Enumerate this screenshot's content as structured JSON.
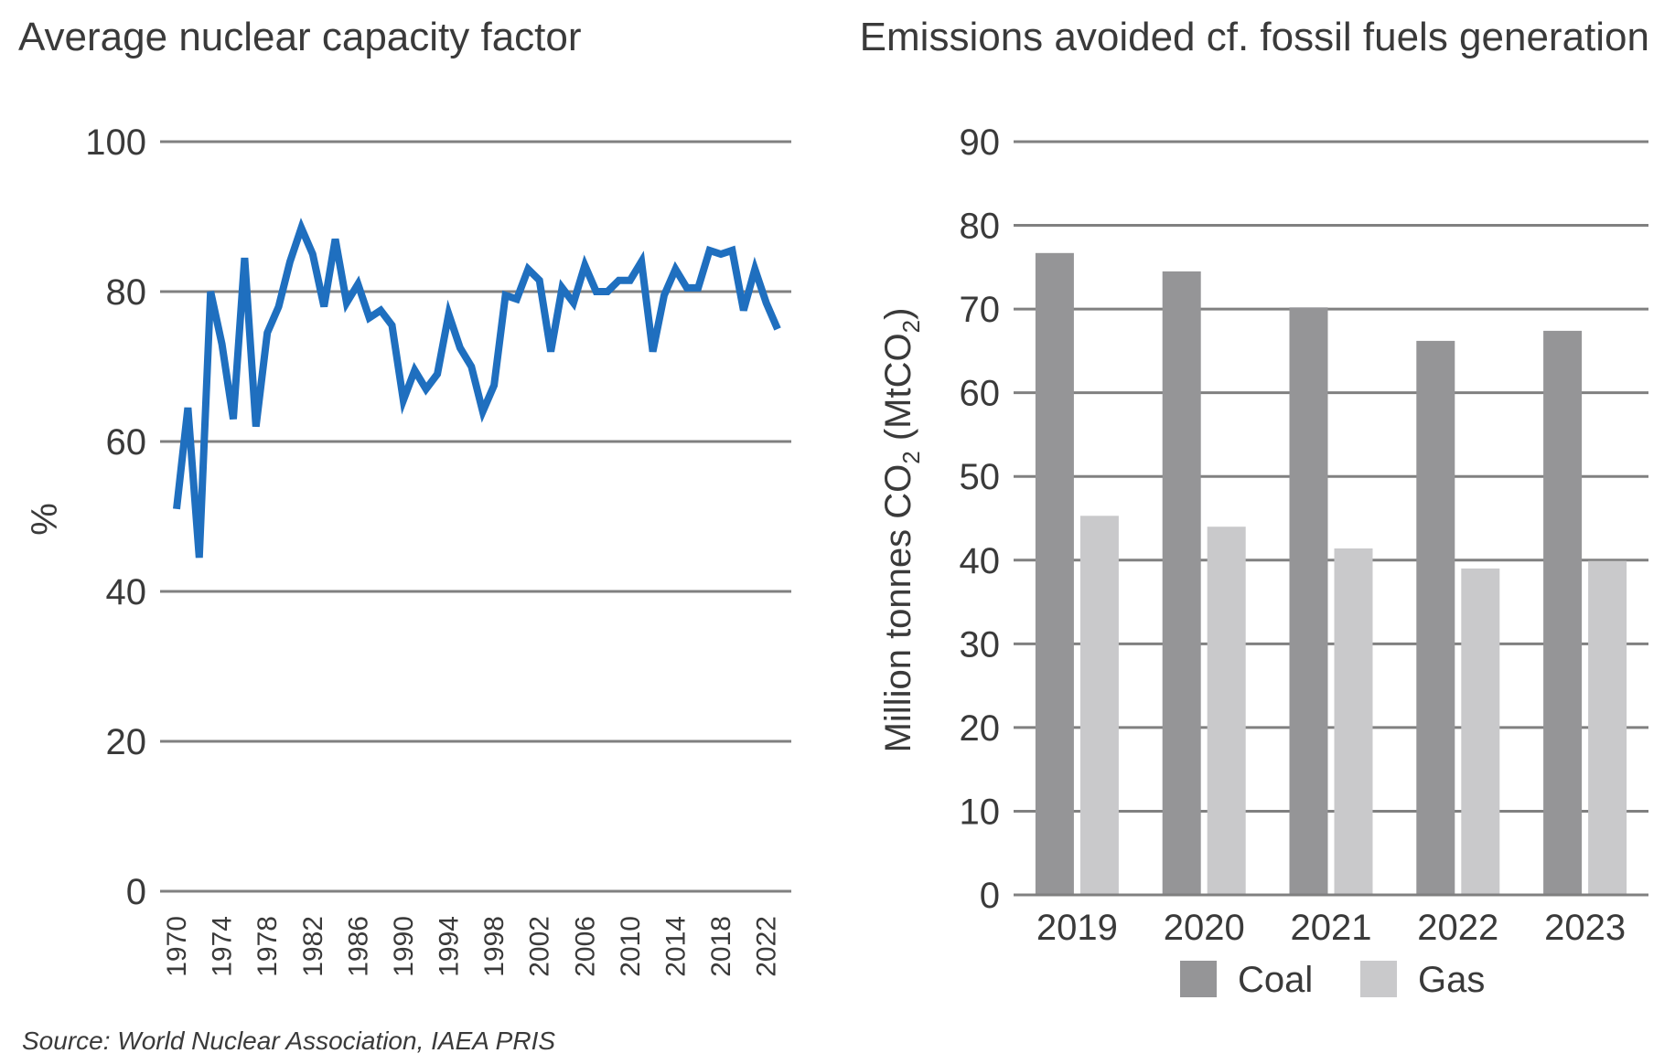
{
  "source_note": "Source: World Nuclear Association, IAEA PRIS",
  "chart_data": [
    {
      "type": "line",
      "title": "Average nuclear capacity factor",
      "ylabel": "%",
      "xlabel": "",
      "ylim": [
        0,
        100
      ],
      "yticks": [
        "0",
        "20",
        "40",
        "60",
        "80",
        "100"
      ],
      "grid": true,
      "xticks": [
        "1970",
        "1974",
        "1978",
        "1982",
        "1986",
        "1990",
        "1994",
        "1998",
        "2002",
        "2006",
        "2010",
        "2014",
        "2018",
        "2022"
      ],
      "line_color": "#1f6fbf",
      "series": [
        {
          "x": [
            1970,
            1971,
            1972,
            1973,
            1974,
            1975,
            1976,
            1977,
            1978,
            1979,
            1980,
            1981,
            1982,
            1983,
            1984,
            1985,
            1986,
            1987,
            1988,
            1989,
            1990,
            1991,
            1992,
            1993,
            1994,
            1995,
            1996,
            1997,
            1998,
            1999,
            2000,
            2001,
            2002,
            2003,
            2004,
            2005,
            2006,
            2007,
            2008,
            2009,
            2010,
            2011,
            2012,
            2013,
            2014,
            2015,
            2016,
            2017,
            2018,
            2019,
            2020,
            2021,
            2022,
            2023
          ],
          "values": [
            51,
            64.5,
            44.5,
            80,
            73,
            63,
            84.5,
            62,
            74.5,
            78,
            84,
            88.5,
            85,
            78,
            87,
            78.5,
            81,
            76.5,
            77.5,
            75.5,
            65.5,
            69.5,
            67,
            69,
            77,
            72.5,
            70,
            64,
            67.5,
            79.5,
            79,
            83,
            81.5,
            72,
            80.5,
            78.5,
            83.5,
            80,
            80,
            81.5,
            81.5,
            84,
            72,
            79.5,
            83,
            80.5,
            80.5,
            85.5,
            85,
            85.5,
            77.5,
            83,
            78.5,
            75
          ]
        }
      ]
    },
    {
      "type": "bar",
      "title": "Emissions avoided cf. fossil fuels generation",
      "ylabel": "Million tonnes CO",
      "ylabel_sub": "2",
      "ylabel_open": " (MtCO",
      "ylabel_close": ")",
      "xlabel": "",
      "ylim": [
        0,
        90
      ],
      "yticks": [
        "0",
        "10",
        "20",
        "30",
        "40",
        "50",
        "60",
        "70",
        "80",
        "90"
      ],
      "grid": true,
      "legend_position": "bottom",
      "categories": [
        "2019",
        "2020",
        "2021",
        "2022",
        "2023"
      ],
      "series": [
        {
          "name": "Coal",
          "color": "#959597",
          "values": [
            76.7,
            74.5,
            70.2,
            66.2,
            67.4
          ]
        },
        {
          "name": "Gas",
          "color": "#c9c9cb",
          "values": [
            45.3,
            44.0,
            41.4,
            39.0,
            39.9
          ]
        }
      ]
    }
  ]
}
